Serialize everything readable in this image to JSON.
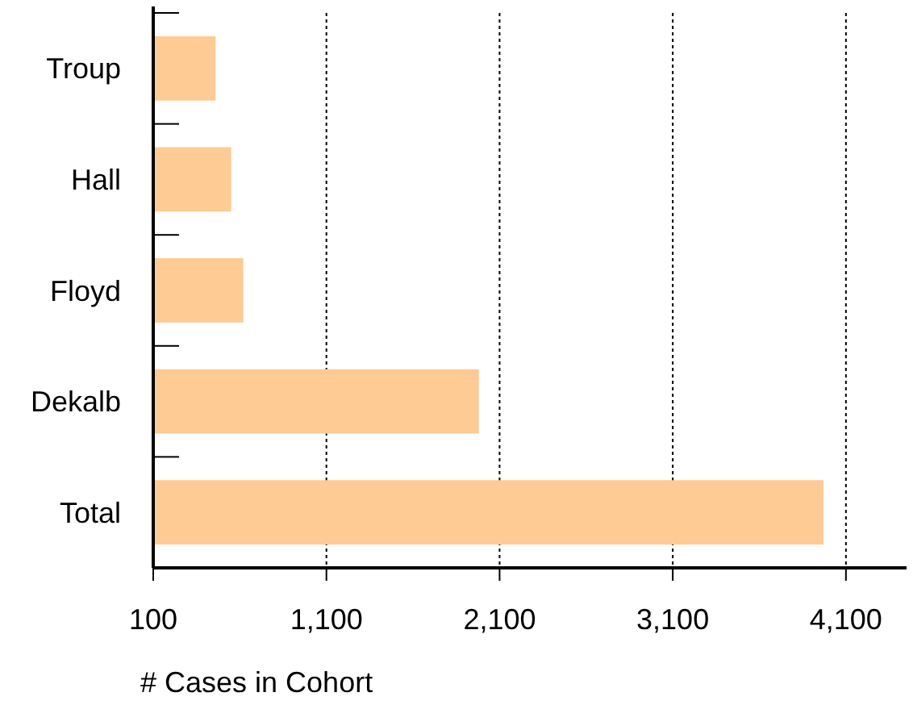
{
  "chart_data": {
    "type": "bar",
    "orientation": "horizontal",
    "categories": [
      "Troup",
      "Hall",
      "Floyd",
      "Dekalb",
      "Total"
    ],
    "values": [
      460,
      550,
      620,
      1980,
      3970
    ],
    "color": "#fecb95",
    "xlabel": "# Cases in Cohort",
    "xlim": [
      100,
      4450
    ],
    "xticks": [
      {
        "value": 100,
        "label": "100"
      },
      {
        "value": 1100,
        "label": "1,100"
      },
      {
        "value": 2100,
        "label": "2,100"
      },
      {
        "value": 3100,
        "label": "3,100"
      },
      {
        "value": 4100,
        "label": "4,100"
      }
    ],
    "grid": "x",
    "line_style": "dotted"
  }
}
